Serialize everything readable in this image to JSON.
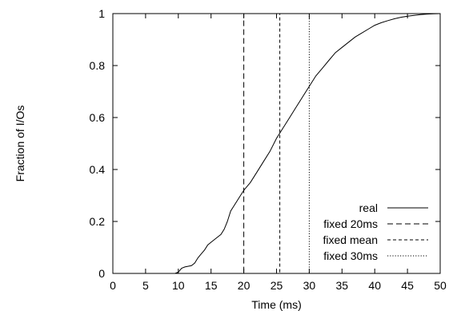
{
  "chart_data": {
    "type": "line",
    "title": "",
    "xlabel": "Time (ms)",
    "ylabel": "Fraction of I/Os",
    "xlim": [
      0,
      50
    ],
    "ylim": [
      0,
      1
    ],
    "xticks": [
      0,
      5,
      10,
      15,
      20,
      25,
      30,
      35,
      40,
      45,
      50
    ],
    "yticks": [
      0,
      0.2,
      0.4,
      0.6,
      0.8,
      1
    ],
    "xtick_labels": [
      "0",
      "5",
      "10",
      "15",
      "20",
      "25",
      "30",
      "35",
      "40",
      "45",
      "50"
    ],
    "ytick_labels": [
      "0",
      "0.2",
      "0.4",
      "0.6",
      "0.8",
      "1"
    ],
    "grid": false,
    "legend_position": "bottom-right",
    "series": [
      {
        "name": "real",
        "style": "solid",
        "points": [
          [
            9.5,
            0
          ],
          [
            10,
            0.005
          ],
          [
            10.5,
            0.02
          ],
          [
            11,
            0.025
          ],
          [
            12,
            0.03
          ],
          [
            12.5,
            0.04
          ],
          [
            13,
            0.06
          ],
          [
            13.5,
            0.075
          ],
          [
            14,
            0.09
          ],
          [
            14.5,
            0.11
          ],
          [
            15,
            0.12
          ],
          [
            16,
            0.14
          ],
          [
            16.5,
            0.15
          ],
          [
            17,
            0.17
          ],
          [
            17.5,
            0.2
          ],
          [
            18,
            0.24
          ],
          [
            18.5,
            0.26
          ],
          [
            19,
            0.28
          ],
          [
            19.5,
            0.3
          ],
          [
            20,
            0.32
          ],
          [
            21,
            0.35
          ],
          [
            22,
            0.39
          ],
          [
            23,
            0.43
          ],
          [
            24,
            0.47
          ],
          [
            25,
            0.52
          ],
          [
            26,
            0.56
          ],
          [
            27,
            0.6
          ],
          [
            28,
            0.64
          ],
          [
            29,
            0.68
          ],
          [
            30,
            0.72
          ],
          [
            31,
            0.76
          ],
          [
            32,
            0.79
          ],
          [
            33,
            0.82
          ],
          [
            34,
            0.85
          ],
          [
            35,
            0.87
          ],
          [
            36,
            0.89
          ],
          [
            37,
            0.91
          ],
          [
            38,
            0.925
          ],
          [
            39,
            0.94
          ],
          [
            40,
            0.955
          ],
          [
            41,
            0.965
          ],
          [
            42,
            0.973
          ],
          [
            43,
            0.98
          ],
          [
            44,
            0.986
          ],
          [
            45,
            0.99
          ],
          [
            46,
            0.993
          ],
          [
            47,
            0.996
          ],
          [
            48,
            0.998
          ],
          [
            49,
            0.999
          ],
          [
            50,
            1
          ]
        ]
      },
      {
        "name": "fixed 20ms",
        "style": "dashed-long",
        "points": [
          [
            0,
            0
          ],
          [
            20,
            0
          ],
          [
            20,
            1
          ],
          [
            50,
            1
          ]
        ]
      },
      {
        "name": "fixed mean",
        "style": "dashed-short",
        "points": [
          [
            0,
            0
          ],
          [
            25.5,
            0
          ],
          [
            25.5,
            1
          ],
          [
            50,
            1
          ]
        ]
      },
      {
        "name": "fixed 30ms",
        "style": "dotted",
        "points": [
          [
            0,
            0
          ],
          [
            30,
            0
          ],
          [
            30,
            1
          ],
          [
            50,
            1
          ]
        ]
      }
    ]
  },
  "colors": {
    "line": "#000000",
    "background": "#ffffff"
  }
}
